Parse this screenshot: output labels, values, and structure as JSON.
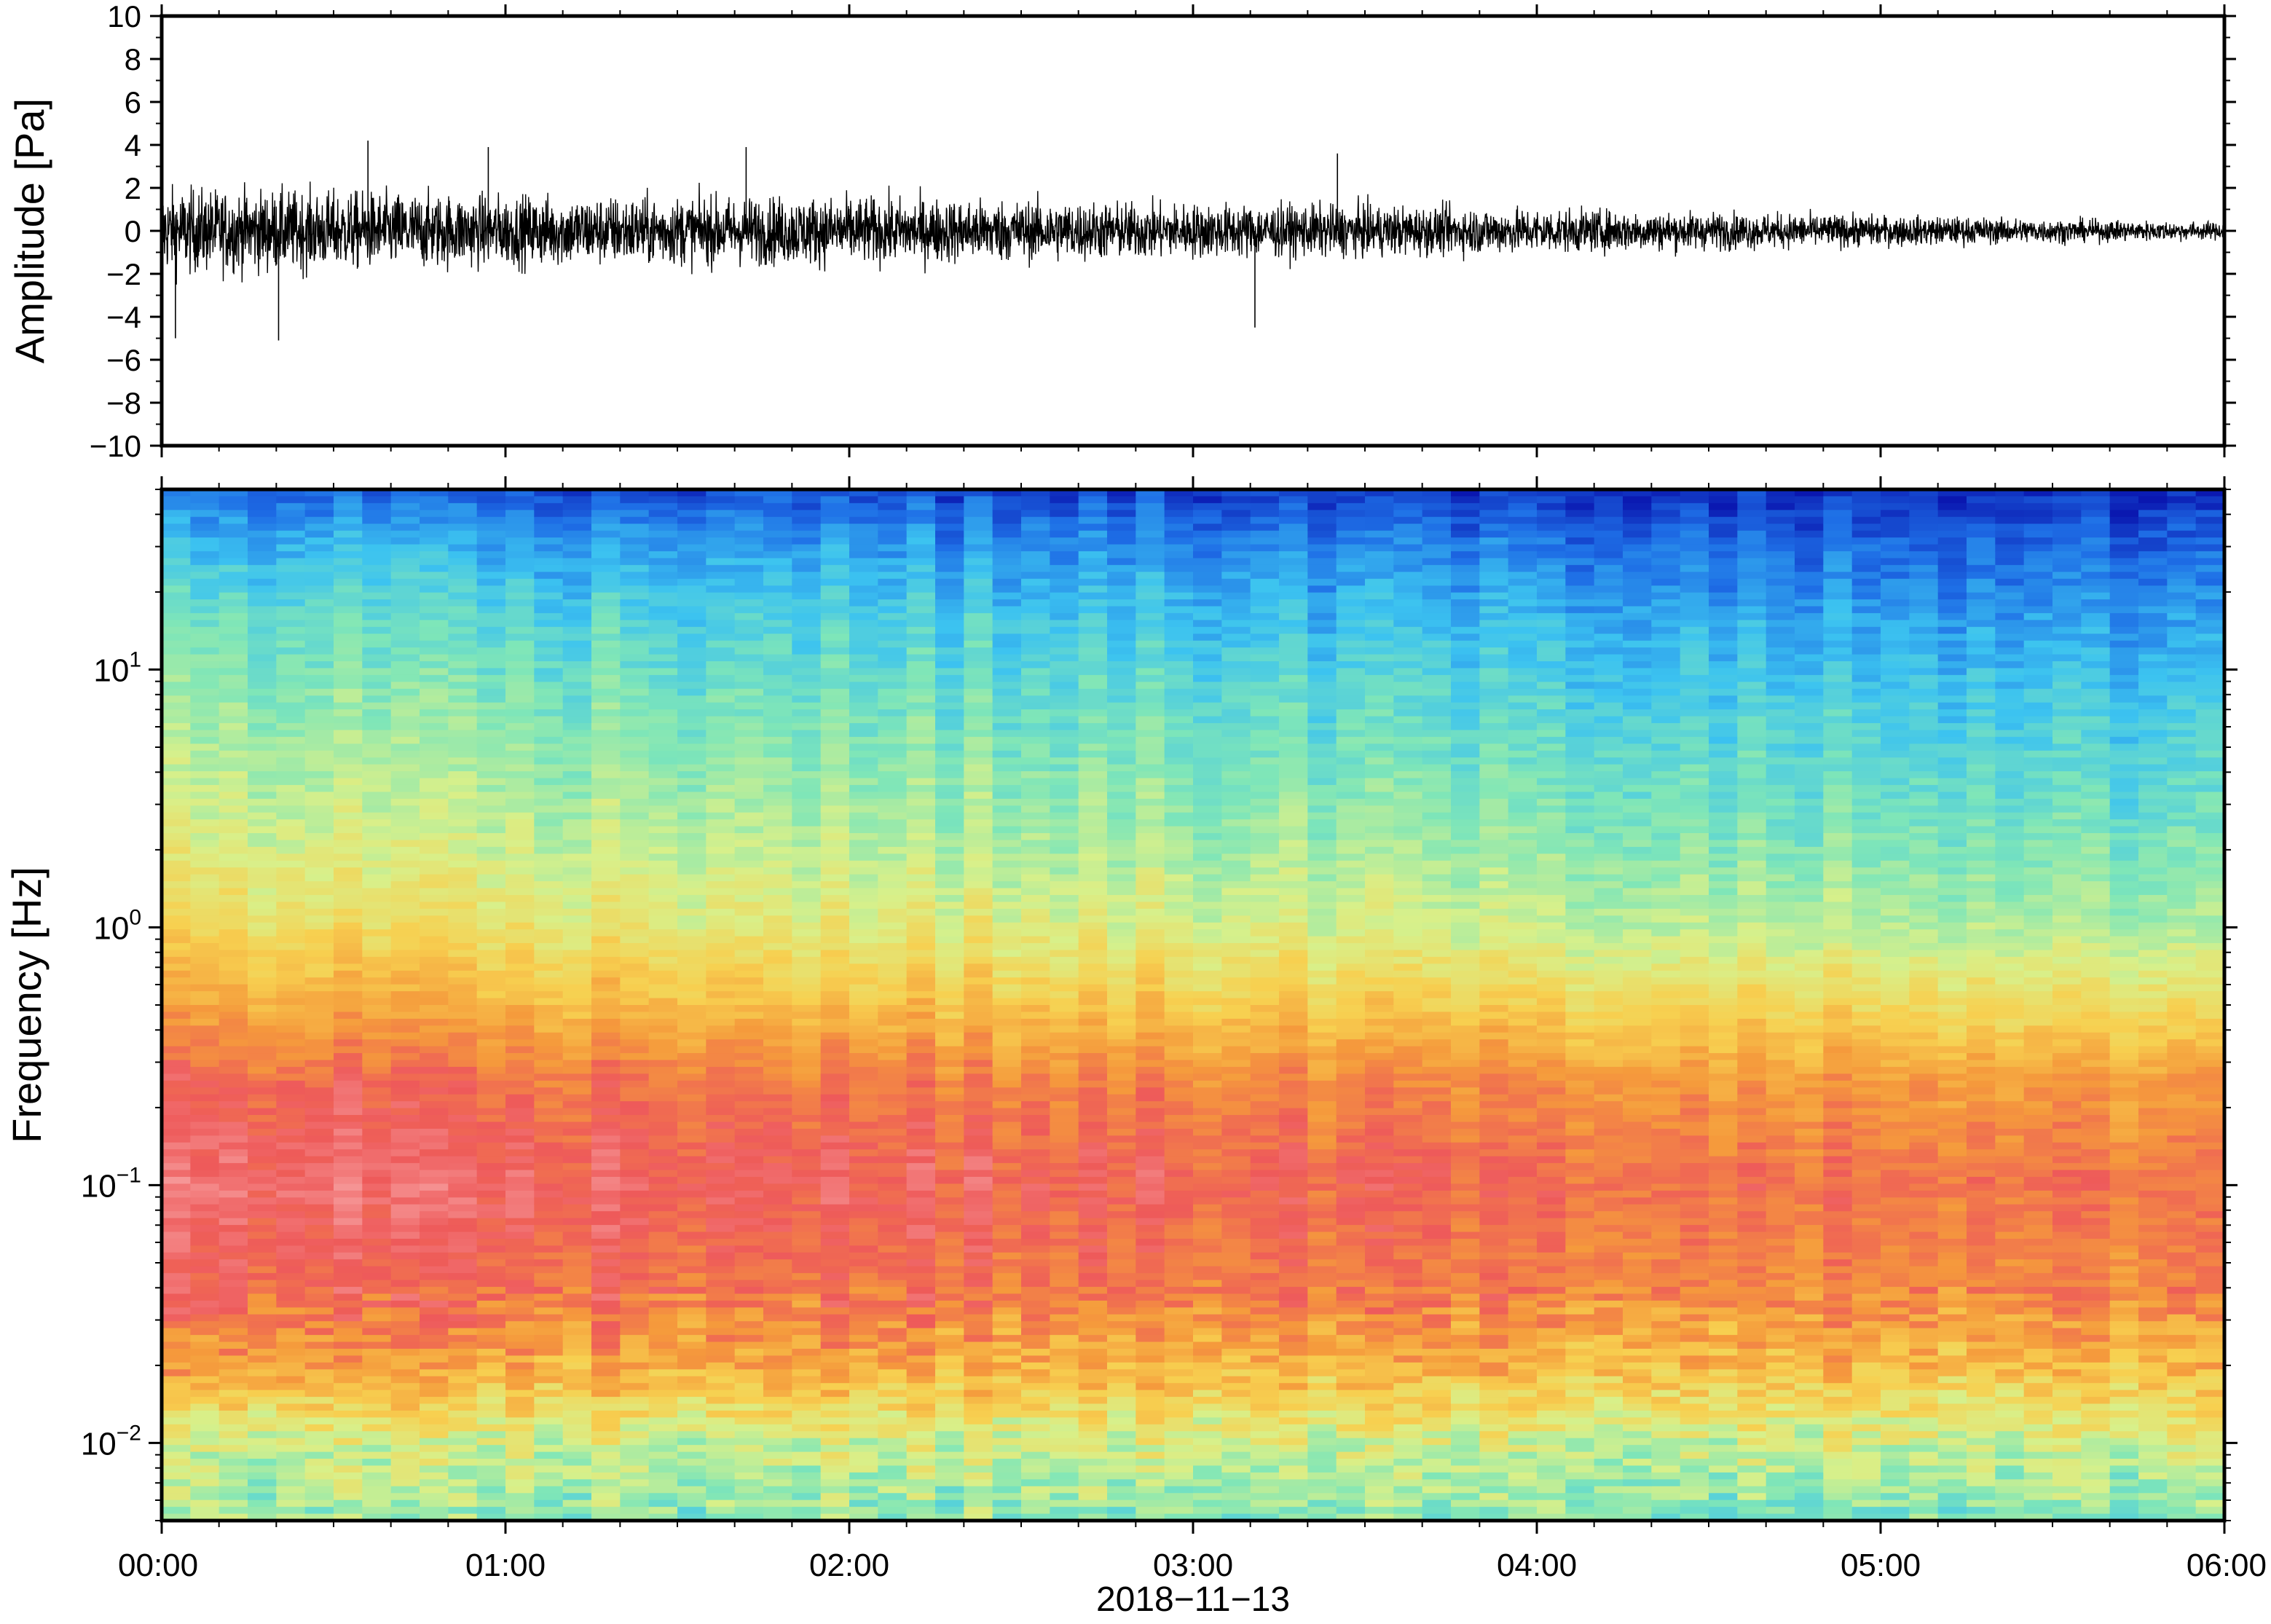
{
  "chart_data": [
    {
      "type": "line",
      "panel": "waveform",
      "ylabel": "Amplitude [Pa]",
      "ylim": [
        -10,
        10
      ],
      "yticks": [
        "10",
        "8",
        "6",
        "4",
        "2",
        "0",
        "−2",
        "−4",
        "−6",
        "−8",
        "−10"
      ],
      "ytick_values": [
        10,
        8,
        6,
        4,
        2,
        0,
        -2,
        -4,
        -6,
        -8,
        -10
      ],
      "xlim": [
        "00:00",
        "06:00"
      ],
      "envelope": {
        "x_hours": [
          0,
          0.5,
          1,
          1.5,
          2,
          2.5,
          3,
          3.5,
          4,
          4.5,
          5,
          5.5,
          6
        ],
        "typical_abs_amplitude": [
          2.5,
          2.3,
          2.1,
          2.0,
          2.0,
          1.8,
          1.6,
          1.5,
          1.3,
          1.1,
          0.9,
          0.7,
          0.5
        ]
      },
      "notable_peaks": [
        {
          "time_hours": 0.04,
          "value": -5.0
        },
        {
          "time_hours": 0.34,
          "value": -5.1
        },
        {
          "time_hours": 0.6,
          "value": 4.2
        },
        {
          "time_hours": 0.95,
          "value": 3.9
        },
        {
          "time_hours": 1.7,
          "value": 3.9
        },
        {
          "time_hours": 3.18,
          "value": -4.5
        },
        {
          "time_hours": 3.42,
          "value": 3.6
        }
      ],
      "series_color": "#000000"
    },
    {
      "type": "heatmap",
      "panel": "spectrogram",
      "ylabel": "Frequency [Hz]",
      "yscale": "log",
      "ylim": [
        0.005,
        50
      ],
      "yticks": [
        {
          "base": "10",
          "exp": "1",
          "value": 10
        },
        {
          "base": "10",
          "exp": "0",
          "value": 1
        },
        {
          "base": "10",
          "exp": "−1",
          "value": 0.1
        },
        {
          "base": "10",
          "exp": "−2",
          "value": 0.01
        }
      ],
      "x_tick_labels": [
        "00:00",
        "01:00",
        "02:00",
        "03:00",
        "04:00",
        "05:00",
        "06:00"
      ],
      "x_tick_hours": [
        0,
        1,
        2,
        3,
        4,
        5,
        6
      ],
      "xlabel": "2018−11−13",
      "colormap": "rainbow",
      "colormap_stops": [
        "#0a17b0",
        "#1e6ee6",
        "#3cc3f0",
        "#7fe6b8",
        "#d8f08a",
        "#f7d050",
        "#f59a3c",
        "#ee5a5a",
        "#f7a0a0"
      ],
      "level_by_frequency": {
        "log10_freq": [
          -2.3,
          -2.0,
          -1.7,
          -1.4,
          -1.0,
          -0.6,
          -0.3,
          0.0,
          0.4,
          0.8,
          1.2,
          1.5,
          1.7
        ],
        "level_start": [
          0.42,
          0.5,
          0.74,
          0.86,
          0.93,
          0.86,
          0.72,
          0.6,
          0.5,
          0.43,
          0.35,
          0.24,
          0.12
        ],
        "level_end": [
          0.36,
          0.48,
          0.66,
          0.76,
          0.8,
          0.72,
          0.56,
          0.42,
          0.33,
          0.26,
          0.17,
          0.08,
          0.0
        ]
      }
    }
  ]
}
